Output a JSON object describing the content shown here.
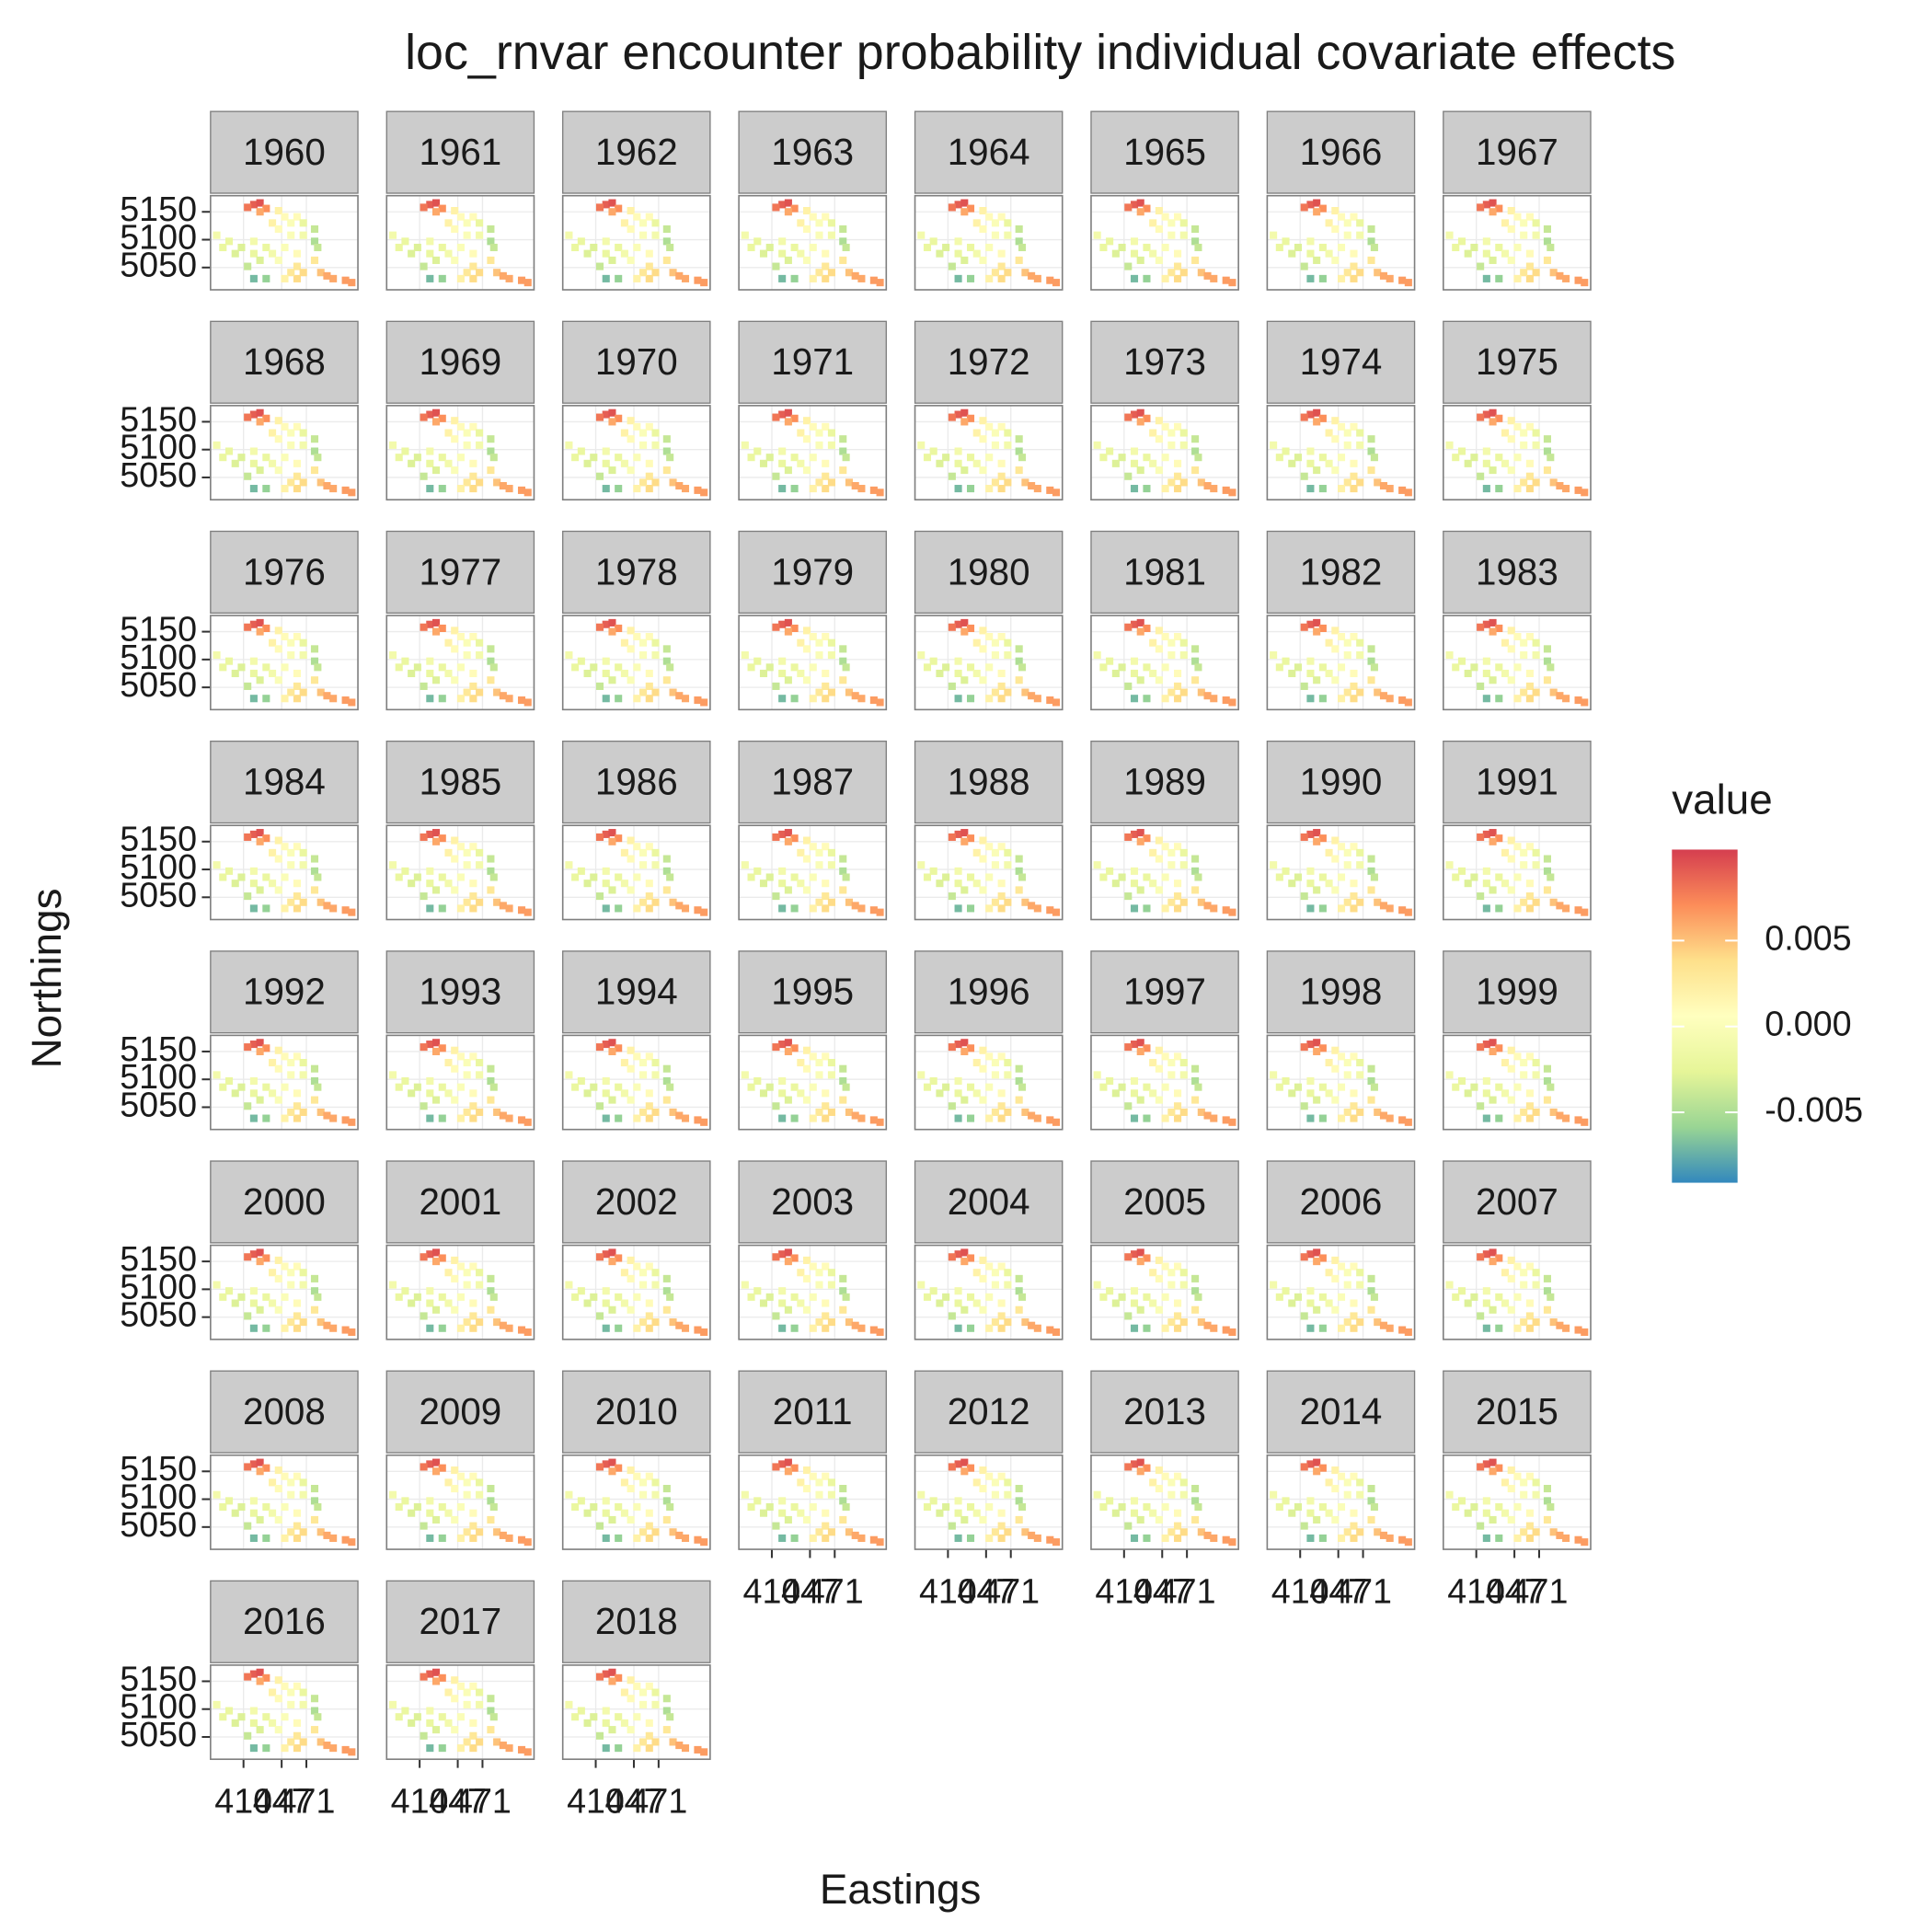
{
  "chart_data": {
    "type": "scatter",
    "title": "loc_rnvar encounter probability individual covariate effects",
    "x_label": "Eastings",
    "y_label": "Northings",
    "legend_title": "value",
    "facets": [
      "1960",
      "1961",
      "1962",
      "1963",
      "1964",
      "1965",
      "1966",
      "1967",
      "1968",
      "1969",
      "1970",
      "1971",
      "1972",
      "1973",
      "1974",
      "1975",
      "1976",
      "1977",
      "1978",
      "1979",
      "1980",
      "1981",
      "1982",
      "1983",
      "1984",
      "1985",
      "1986",
      "1987",
      "1988",
      "1989",
      "1990",
      "1991",
      "1992",
      "1993",
      "1994",
      "1995",
      "1996",
      "1997",
      "1998",
      "1999",
      "2000",
      "2001",
      "2002",
      "2003",
      "2004",
      "2005",
      "2006",
      "2007",
      "2008",
      "2009",
      "2010",
      "2011",
      "2012",
      "2013",
      "2014",
      "2015",
      "2016",
      "2017",
      "2018"
    ],
    "x": [
      420,
      426,
      414,
      432,
      426,
      444,
      450,
      438,
      456,
      462,
      468,
      444,
      456,
      468,
      479,
      479,
      482,
      384,
      396,
      390,
      408,
      420,
      432,
      402,
      420,
      438,
      450,
      462,
      426,
      444,
      414,
      420,
      432,
      462,
      468,
      462,
      479,
      485,
      491,
      497,
      509,
      515,
      456,
      450
    ],
    "y": [
      5163,
      5166,
      5158,
      5156,
      5150,
      5152,
      5141,
      5130,
      5130,
      5141,
      5130,
      5119,
      5108,
      5108,
      5119,
      5097,
      5086,
      5108,
      5097,
      5086,
      5086,
      5097,
      5086,
      5075,
      5075,
      5075,
      5086,
      5075,
      5063,
      5063,
      5052,
      5030,
      5030,
      5052,
      5041,
      5030,
      5063,
      5041,
      5035,
      5030,
      5027,
      5023,
      5041,
      5030
    ],
    "values": [
      0.009,
      0.0095,
      0.008,
      0.007,
      0.006,
      0.002,
      0.001,
      0.002,
      0.0,
      0.001,
      -0.002,
      0.001,
      0.0,
      -0.001,
      -0.004,
      -0.005,
      -0.004,
      -0.001,
      -0.002,
      -0.002,
      -0.003,
      -0.001,
      -0.002,
      -0.003,
      -0.002,
      -0.001,
      0.0,
      0.001,
      -0.003,
      0.0,
      -0.004,
      -0.007,
      -0.006,
      0.003,
      0.004,
      0.004,
      0.003,
      0.005,
      0.006,
      0.006,
      0.0065,
      0.0065,
      0.003,
      0.002
    ],
    "xlim": [
      378,
      521
    ],
    "xticks": [
      410,
      447,
      471
    ],
    "ylim": [
      5010,
      5179
    ],
    "yticks": [
      5050,
      5100,
      5150
    ],
    "colorlim": [
      -0.0091,
      0.0103
    ],
    "colorticks": [
      {
        "value": 0.005,
        "label": "0.005"
      },
      {
        "value": 0,
        "label": "0.000"
      },
      {
        "value": -0.005,
        "label": "-0.005"
      }
    ],
    "colors": [
      "#3288bd",
      "#99d594",
      "#e6f598",
      "#ffffbf",
      "#fee08b",
      "#fc8d59",
      "#d53e4f"
    ],
    "ncol": 8,
    "grid": true
  }
}
